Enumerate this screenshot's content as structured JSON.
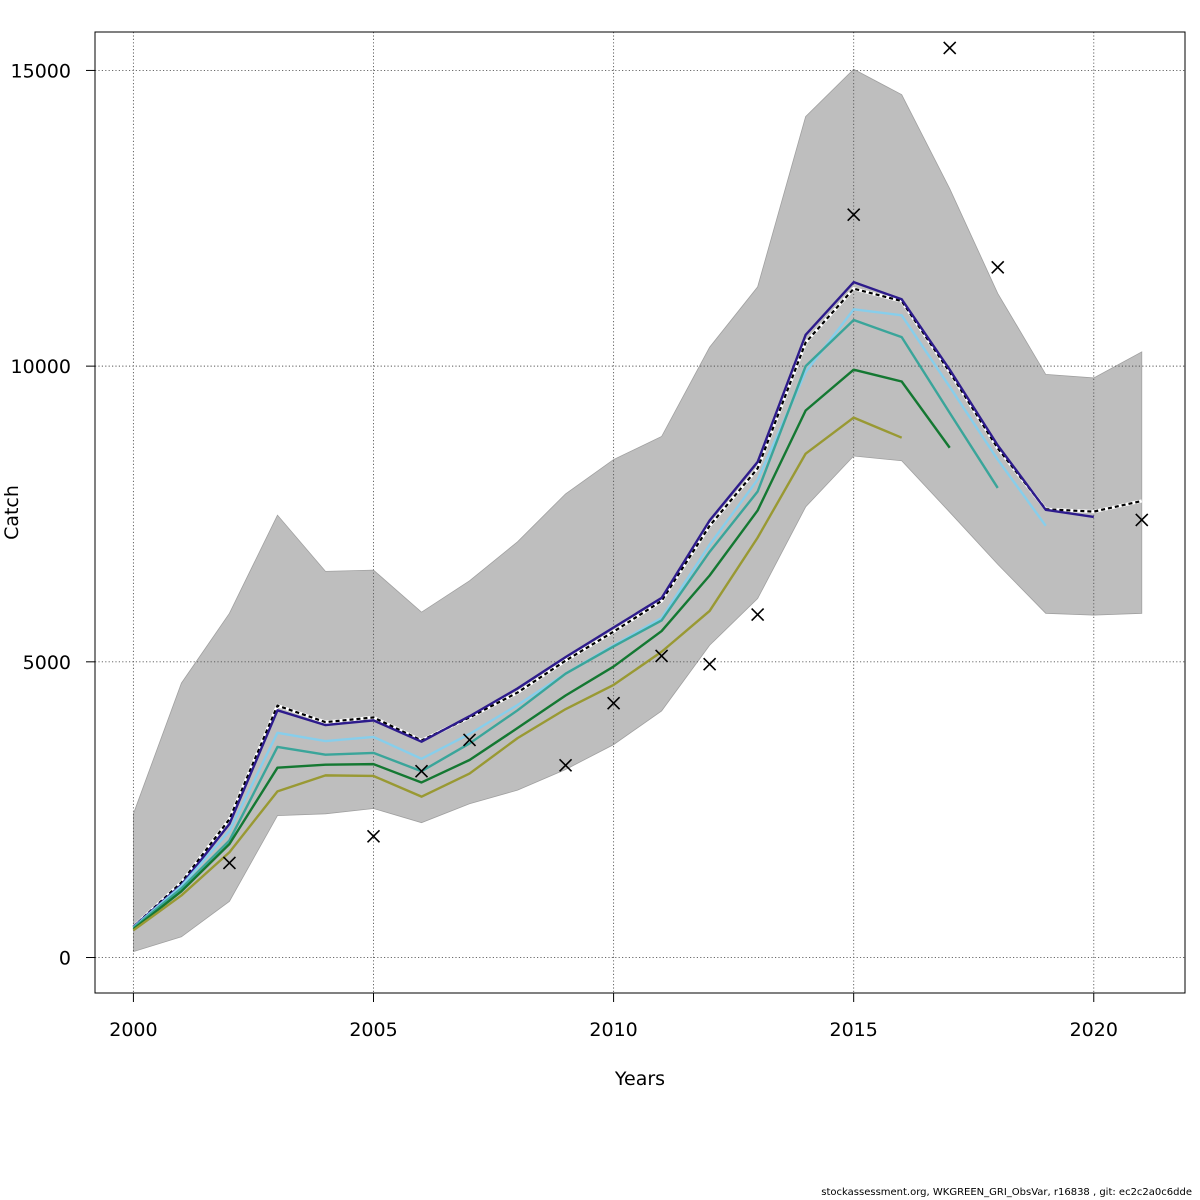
{
  "footer_text": "stockassessment.org, WKGREEN_GRI_ObsVar, r16838 , git: ec2c2a0c6dde",
  "chart_data": {
    "type": "line",
    "title": "",
    "xlabel": "Years",
    "ylabel": "Catch",
    "xlim": [
      1999.2,
      2021.9
    ],
    "ylim": [
      -600,
      15650
    ],
    "x_ticks": [
      2000,
      2005,
      2010,
      2015,
      2020
    ],
    "y_ticks": [
      0,
      5000,
      10000,
      15000
    ],
    "grid": true,
    "confidence_band": {
      "color": "#bebebe",
      "x": [
        2000,
        2001,
        2002,
        2003,
        2004,
        2005,
        2006,
        2007,
        2008,
        2009,
        2010,
        2011,
        2012,
        2013,
        2014,
        2015,
        2016,
        2017,
        2018,
        2019,
        2020,
        2021
      ],
      "lower": [
        100,
        350,
        950,
        2400,
        2430,
        2520,
        2280,
        2600,
        2830,
        3180,
        3600,
        4170,
        5280,
        6070,
        7620,
        8480,
        8400,
        7530,
        6650,
        5820,
        5790,
        5820
      ],
      "upper": [
        2430,
        4640,
        5820,
        7480,
        6530,
        6550,
        5840,
        6370,
        7030,
        7840,
        8420,
        8810,
        10320,
        11340,
        14220,
        15020,
        14590,
        13000,
        11230,
        9860,
        9800,
        10240
      ]
    },
    "series": [
      {
        "color": "#000000",
        "dashed": true,
        "x": [
          2000,
          2001,
          2002,
          2003,
          2004,
          2005,
          2006,
          2007,
          2008,
          2009,
          2010,
          2011,
          2012,
          2013,
          2014,
          2015,
          2016,
          2017,
          2018,
          2019,
          2020,
          2021
        ],
        "values": [
          520,
          1270,
          2340,
          4260,
          3980,
          4060,
          3670,
          4060,
          4480,
          5020,
          5510,
          6030,
          7300,
          8270,
          10400,
          11310,
          11100,
          9900,
          8610,
          7580,
          7540,
          7720
        ]
      },
      {
        "color": "#2d1b8c",
        "dashed": false,
        "x": [
          2000,
          2001,
          2002,
          2003,
          2004,
          2005,
          2006,
          2007,
          2008,
          2009,
          2010,
          2011,
          2012,
          2013,
          2014,
          2015,
          2016,
          2017,
          2018,
          2019,
          2020
        ],
        "values": [
          520,
          1230,
          2260,
          4180,
          3930,
          4010,
          3650,
          4080,
          4550,
          5080,
          5580,
          6080,
          7390,
          8380,
          10530,
          11420,
          11130,
          9940,
          8660,
          7570,
          7450
        ]
      },
      {
        "color": "#87ceeb",
        "dashed": false,
        "x": [
          2000,
          2001,
          2002,
          2003,
          2004,
          2005,
          2006,
          2007,
          2008,
          2009,
          2010,
          2011,
          2012,
          2013,
          2014,
          2015,
          2016,
          2017,
          2018,
          2019
        ],
        "values": [
          510,
          1210,
          2140,
          3800,
          3660,
          3730,
          3360,
          3780,
          4270,
          4800,
          5280,
          5740,
          6980,
          8080,
          9900,
          10960,
          10860,
          9650,
          8420,
          7300
        ]
      },
      {
        "color": "#3aa59a",
        "dashed": false,
        "x": [
          2000,
          2001,
          2002,
          2003,
          2004,
          2005,
          2006,
          2007,
          2008,
          2009,
          2010,
          2011,
          2012,
          2013,
          2014,
          2015,
          2016,
          2017,
          2018
        ],
        "values": [
          500,
          1170,
          1980,
          3560,
          3430,
          3460,
          3150,
          3620,
          4180,
          4800,
          5260,
          5700,
          6860,
          7880,
          10000,
          10780,
          10490,
          9210,
          7940
        ]
      },
      {
        "color": "#147832",
        "dashed": false,
        "x": [
          2000,
          2001,
          2002,
          2003,
          2004,
          2005,
          2006,
          2007,
          2008,
          2009,
          2010,
          2011,
          2012,
          2013,
          2014,
          2015,
          2016,
          2017
        ],
        "values": [
          480,
          1120,
          1920,
          3210,
          3260,
          3270,
          2960,
          3340,
          3880,
          4430,
          4920,
          5520,
          6460,
          7560,
          9250,
          9940,
          9740,
          8620
        ]
      },
      {
        "color": "#999933",
        "dashed": false,
        "x": [
          2000,
          2001,
          2002,
          2003,
          2004,
          2005,
          2006,
          2007,
          2008,
          2009,
          2010,
          2011,
          2012,
          2013,
          2014,
          2015,
          2016
        ],
        "values": [
          460,
          1050,
          1780,
          2810,
          3080,
          3070,
          2720,
          3110,
          3710,
          4200,
          4610,
          5170,
          5860,
          7100,
          8520,
          9130,
          8790
        ]
      }
    ],
    "observations": {
      "marker": "x",
      "x": [
        2002,
        2005,
        2006,
        2007,
        2009,
        2010,
        2011,
        2012,
        2013,
        2015,
        2017,
        2018,
        2021
      ],
      "values": [
        1600,
        2050,
        3150,
        3680,
        3250,
        4300,
        5100,
        4960,
        5800,
        12560,
        15380,
        11670,
        7400
      ]
    }
  }
}
